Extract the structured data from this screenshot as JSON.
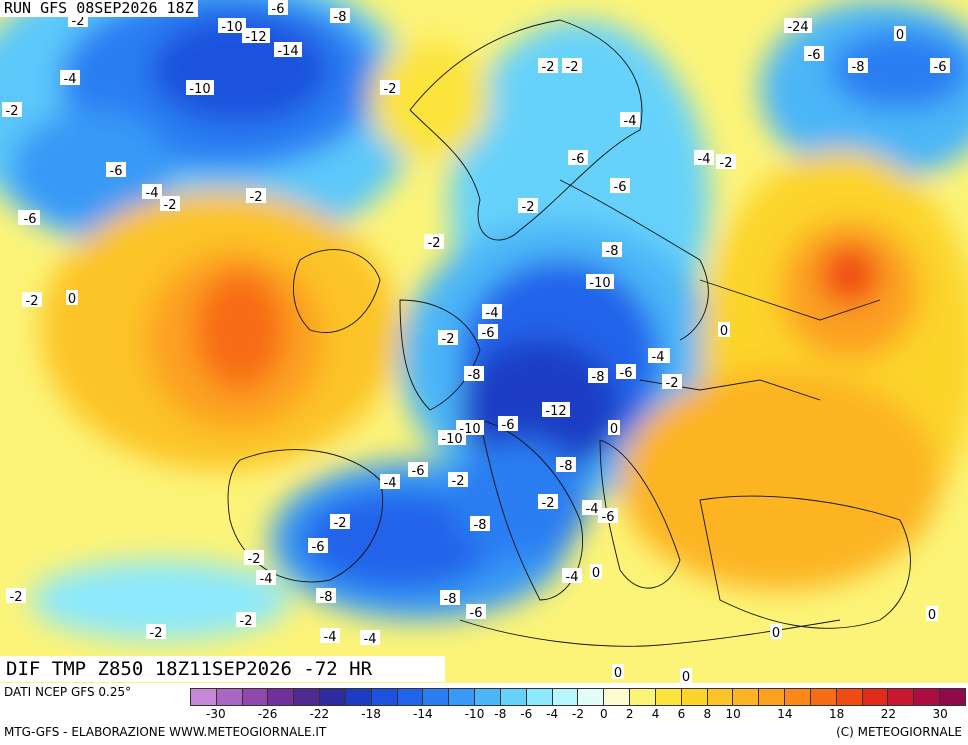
{
  "header": {
    "run_title": "RUN GFS 08SEP2026 18Z",
    "field_title": "DIF TMP Z850 18Z11SEP2026 -72 HR"
  },
  "footer": {
    "data_source": "DATI NCEP GFS 0.25°",
    "credit_left": "MTG-GFS - ELABORAZIONE WWW.METEOGIORNALE.IT",
    "credit_right": "(C) METEOGIORNALE"
  },
  "legend": {
    "swatch_colors": [
      "#c788d8",
      "#aa66c4",
      "#9148ac",
      "#73309a",
      "#4e2a90",
      "#2f2aa0",
      "#1c3cc4",
      "#1e52de",
      "#2064ea",
      "#2a7ef2",
      "#389af6",
      "#4cb6f8",
      "#66d2fa",
      "#8ce8fc",
      "#b8f6fc",
      "#e4fcf8",
      "#fcfcd0",
      "#fcf478",
      "#fce43c",
      "#fcd42a",
      "#fcc428",
      "#fcb424",
      "#fca020",
      "#fc8818",
      "#f86c14",
      "#f04c14",
      "#e02c18",
      "#c81830",
      "#ac0c40",
      "#900a4a"
    ],
    "tick_labels": [
      "-30",
      "-26",
      "-22",
      "-18",
      "-14",
      "-10",
      "-8",
      "-6",
      "-4",
      "-2",
      "0",
      "2",
      "4",
      "6",
      "8",
      "10",
      "14",
      "18",
      "22",
      "30"
    ]
  },
  "contour_labels": [
    "-6",
    "-8",
    "-10",
    "-12",
    "-14",
    "-2",
    "-4",
    "-10",
    "-2",
    "-2",
    "-24",
    "0",
    "-6",
    "-8",
    "-6",
    "-2",
    "-2",
    "-4",
    "-6",
    "-4",
    "-2",
    "-6",
    "-4",
    "-2",
    "-2",
    "-6",
    "-2",
    "-8",
    "-10",
    "-4",
    "-6",
    "-2",
    "-8",
    "-8",
    "-6",
    "-4",
    "-2",
    "-12",
    "-10",
    "-6",
    "-8",
    "-10",
    "0",
    "-6",
    "-4",
    "-2",
    "-2",
    "-6",
    "-2",
    "-8",
    "-8",
    "-6",
    "-2",
    "-4",
    "-4",
    "-8",
    "-6",
    "-4",
    "-4",
    "-2",
    "0",
    "0",
    "0",
    "0",
    "0",
    "-2",
    "0",
    "0",
    "-2",
    "-2",
    "-2",
    "-6",
    "-6",
    "-4",
    "-4"
  ]
}
